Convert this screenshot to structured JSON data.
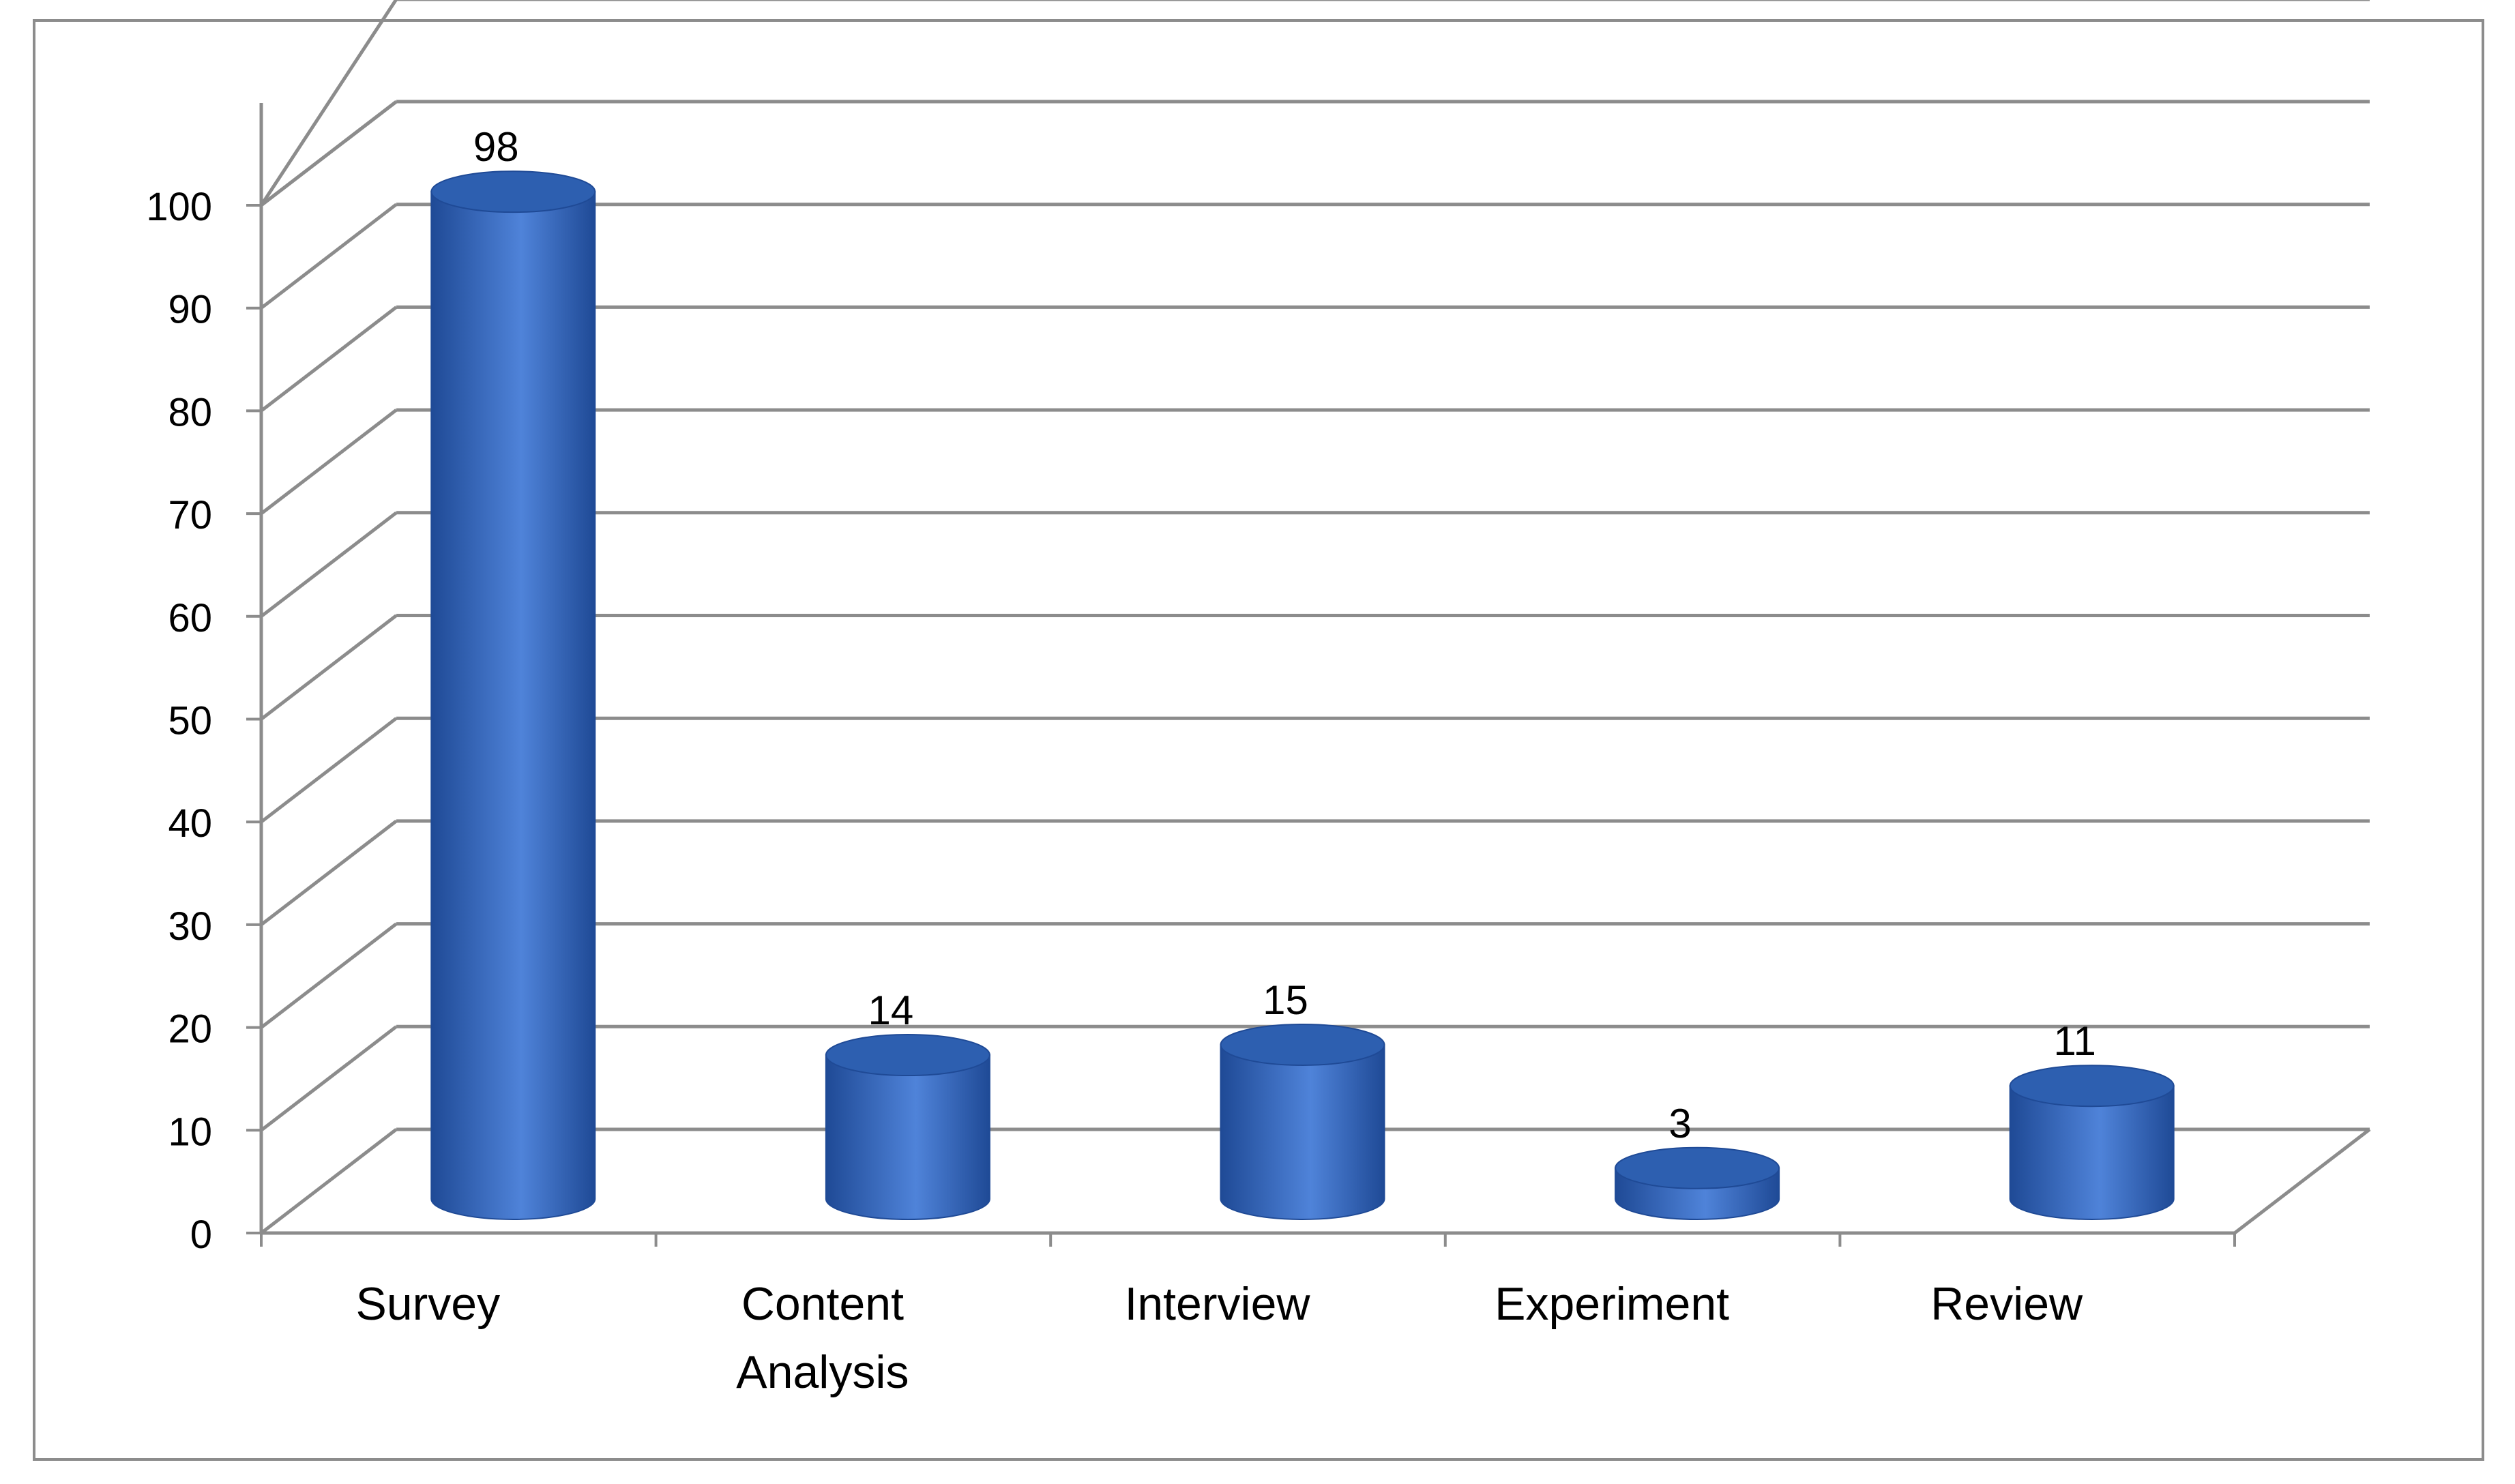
{
  "chart_data": {
    "type": "bar",
    "style": "3d-cylinder",
    "title": "",
    "xlabel": "",
    "ylabel": "",
    "categories": [
      "Survey",
      "Content Analysis",
      "Interview",
      "Experiment",
      "Review"
    ],
    "category_lines": [
      [
        "Survey"
      ],
      [
        "Content",
        "Analysis"
      ],
      [
        "Interview"
      ],
      [
        "Experiment"
      ],
      [
        "Review"
      ]
    ],
    "values": [
      98,
      14,
      15,
      3,
      11
    ],
    "data_labels": [
      "98",
      "14",
      "15",
      "3",
      "11"
    ],
    "ylim": [
      0,
      100
    ],
    "yticks": [
      0,
      10,
      20,
      30,
      40,
      50,
      60,
      70,
      80,
      90,
      100
    ],
    "ytick_labels": [
      "0",
      "10",
      "20",
      "30",
      "40",
      "50",
      "60",
      "70",
      "80",
      "90",
      "100"
    ],
    "grid": true,
    "legend": "none",
    "colors": {
      "bar_light": "#4f83d9",
      "bar_mid": "#3a6fc8",
      "bar_dark": "#1f4a96",
      "bar_top": "#2d5fb0",
      "grid": "#8c8c8c",
      "border": "#8c8c8c",
      "text": "#000000"
    }
  }
}
